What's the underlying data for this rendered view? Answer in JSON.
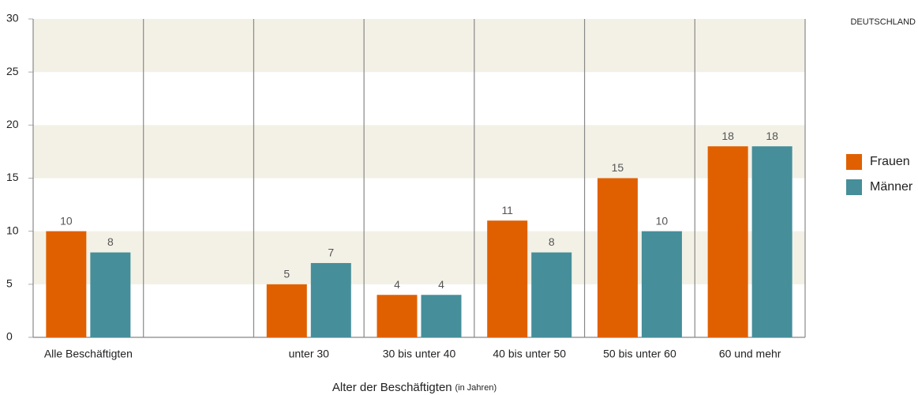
{
  "chart_data": {
    "type": "bar",
    "logo_text": "DEUTSCHLAND",
    "xlabel": "Alter der Beschäftigten",
    "xlabel_note": "(in Jahren)",
    "categories": [
      "Alle Beschäftigten",
      null,
      "unter 30",
      "30 bis unter 40",
      "40 bis unter 50",
      "50 bis unter 60",
      "60 und mehr"
    ],
    "series": [
      {
        "name": "Frauen",
        "color": "#e06000",
        "values": [
          10,
          null,
          5,
          4,
          11,
          15,
          18
        ]
      },
      {
        "name": "Männer",
        "color": "#468e9a",
        "values": [
          8,
          null,
          7,
          4,
          8,
          10,
          18
        ]
      }
    ],
    "ylim": [
      0,
      30
    ],
    "yticks": [
      0,
      5,
      10,
      15,
      20,
      25,
      30
    ],
    "band_color": "#f3f1e6",
    "legend": "right"
  }
}
